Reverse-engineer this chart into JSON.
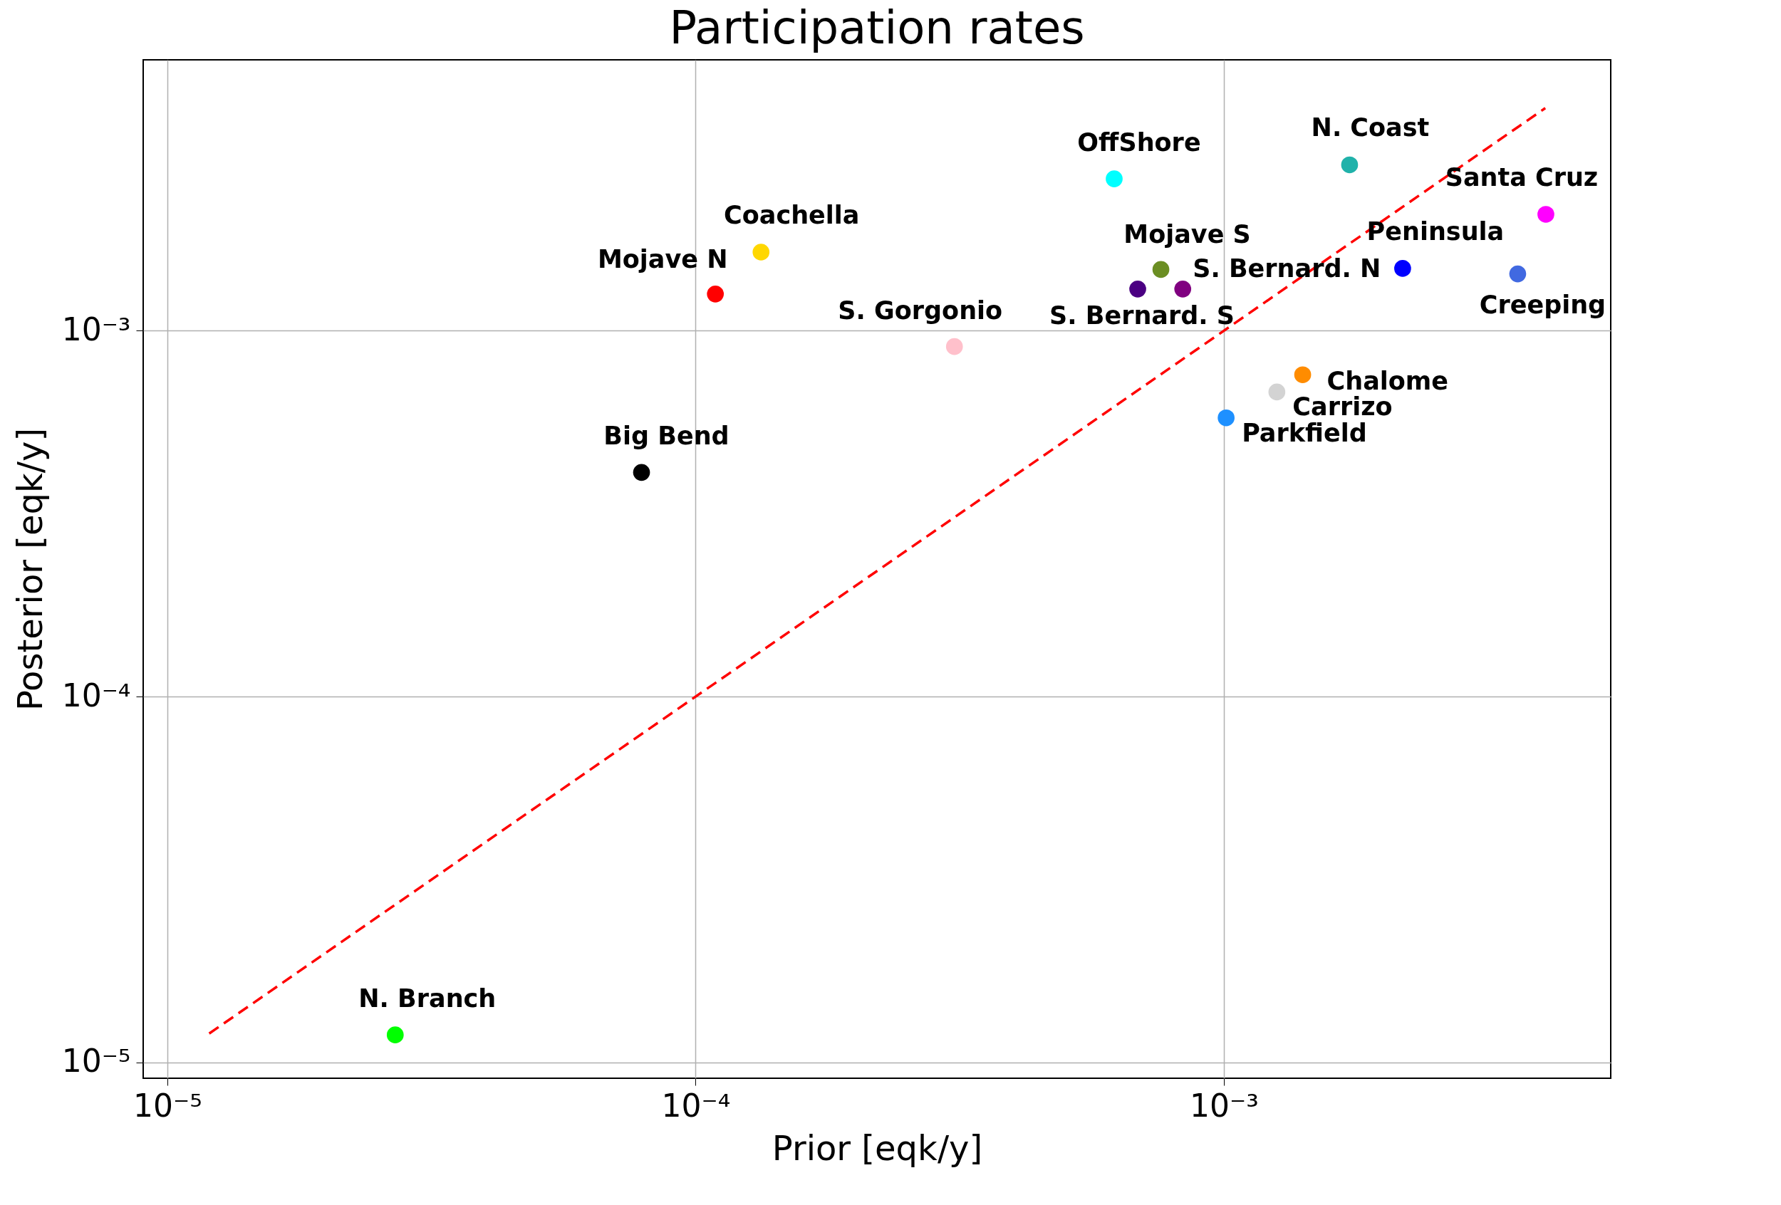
{
  "chart_data": {
    "type": "scatter",
    "title": "Participation rates",
    "xlabel": "Prior [eqk/y]",
    "ylabel": "Posterior [eqk/y]",
    "log": "xy",
    "grid": true,
    "marker": "circle",
    "xlim": [
      9e-06,
      0.0054
    ],
    "ylim": [
      9.06e-06,
      0.0055
    ],
    "xticks": [
      {
        "value": 1e-05,
        "label": "10⁻⁵"
      },
      {
        "value": 0.0001,
        "label": "10⁻⁴"
      },
      {
        "value": 0.001,
        "label": "10⁻³"
      }
    ],
    "yticks": [
      {
        "value": 1e-05,
        "label": "10⁻⁵"
      },
      {
        "value": 0.0001,
        "label": "10⁻⁴"
      },
      {
        "value": 0.001,
        "label": "10⁻³"
      }
    ],
    "series": [
      {
        "type": "line",
        "color": "#ff0000",
        "line_style": "dashed",
        "marker": "none",
        "x": [
          1.2e-05,
          0.00406
        ],
        "values": [
          1.2e-05,
          0.00406
        ]
      },
      {
        "name": "N. Branch",
        "color": "#00ff00",
        "x": [
          2.7e-05
        ],
        "values": [
          1.19e-05
        ]
      },
      {
        "name": "Big Bend",
        "color": "#000000",
        "x": [
          7.9e-05
        ],
        "values": [
          0.00041
        ]
      },
      {
        "name": "Mojave N",
        "color": "#ff0000",
        "x": [
          0.000109
        ],
        "values": [
          0.00126
        ]
      },
      {
        "name": "Coachella",
        "color": "#ffd700",
        "x": [
          0.000133
        ],
        "values": [
          0.00164
        ]
      },
      {
        "name": "S. Gorgonio",
        "color": "#ffc0cb",
        "x": [
          0.000309
        ],
        "values": [
          0.000905
        ]
      },
      {
        "name": "OffShore",
        "color": "#00ffff",
        "x": [
          0.00062
        ],
        "values": [
          0.0026
        ]
      },
      {
        "name": "N. Coast",
        "color": "#20b2aa",
        "x": [
          0.00173
        ],
        "values": [
          0.00284
        ]
      },
      {
        "name": "Santa Cruz",
        "color": "#ff00ff",
        "x": [
          0.00407
        ],
        "values": [
          0.00208
        ]
      },
      {
        "name": "Peninsula",
        "color": "#0000ff",
        "x": [
          0.00218
        ],
        "values": [
          0.00148
        ]
      },
      {
        "name": "Creeping",
        "color": "#4169e1",
        "x": [
          0.0036
        ],
        "values": [
          0.00143
        ]
      },
      {
        "name": "Mojave S",
        "color": "#6b8e23",
        "x": [
          0.00076
        ],
        "values": [
          0.00147
        ]
      },
      {
        "name": "S. Bernard. S",
        "color": "#4b0082",
        "x": [
          0.000687
        ],
        "values": [
          0.0013
        ]
      },
      {
        "name": "S. Bernard. N",
        "color": "#800080",
        "x": [
          0.000836
        ],
        "values": [
          0.0013
        ]
      },
      {
        "name": "Chalome",
        "color": "#ff8c00",
        "x": [
          0.00141
        ],
        "values": [
          0.000758
        ]
      },
      {
        "name": "Carrizo",
        "color": "#d3d3d3",
        "x": [
          0.00126
        ],
        "values": [
          0.00068
        ]
      },
      {
        "name": "Parkfield",
        "color": "#1e90ff",
        "x": [
          0.00101
        ],
        "values": [
          0.000578
        ]
      }
    ]
  }
}
